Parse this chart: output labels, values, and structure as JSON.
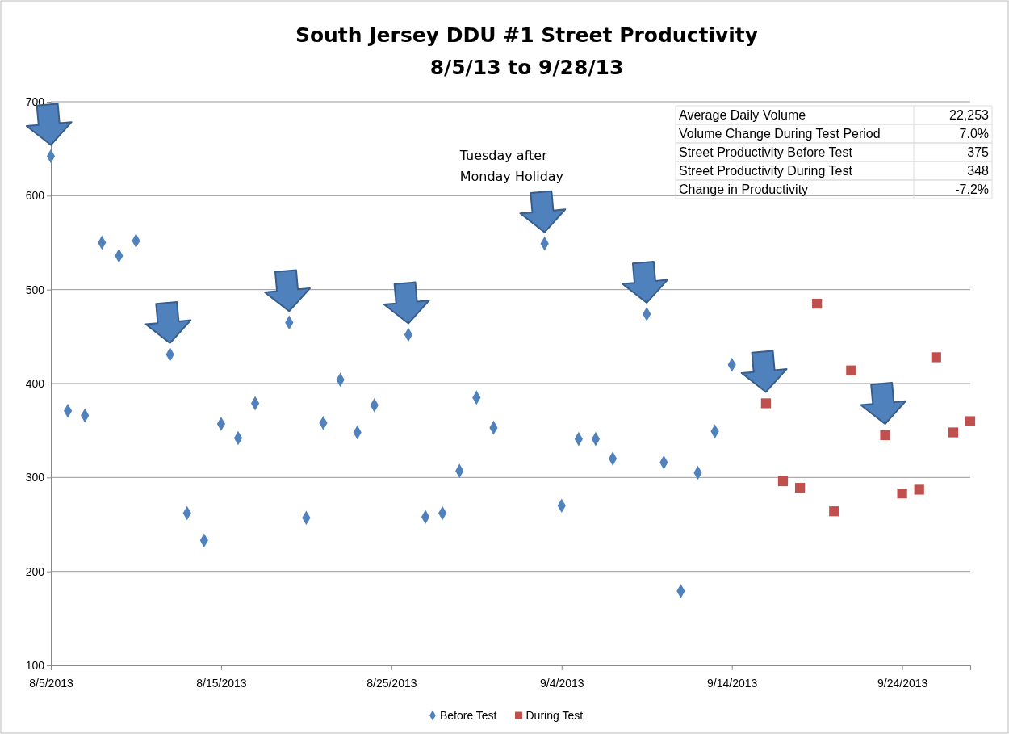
{
  "chart_data": {
    "type": "scatter",
    "title": "South Jersey DDU #1 Street Productivity",
    "subtitle": "8/5/13 to 9/28/13",
    "xlim": [
      "2013-08-05",
      "2013-09-28"
    ],
    "xticks": [
      {
        "value": "2013-08-05",
        "label": "8/5/2013"
      },
      {
        "value": "2013-08-15",
        "label": "8/15/2013"
      },
      {
        "value": "2013-08-25",
        "label": "8/25/2013"
      },
      {
        "value": "2013-09-04",
        "label": "9/4/2013"
      },
      {
        "value": "2013-09-14",
        "label": "9/14/2013"
      },
      {
        "value": "2013-09-24",
        "label": "9/24/2013"
      }
    ],
    "ylim": [
      100,
      700
    ],
    "yticks": [
      100,
      200,
      300,
      400,
      500,
      600,
      700
    ],
    "grid": "y",
    "legend": "bottom",
    "series": [
      {
        "name": "Before Test",
        "color": "#4f81bd",
        "marker": "diamond",
        "x": [
          "2013-08-05",
          "2013-08-06",
          "2013-08-07",
          "2013-08-08",
          "2013-08-09",
          "2013-08-10",
          "2013-08-12",
          "2013-08-13",
          "2013-08-14",
          "2013-08-15",
          "2013-08-16",
          "2013-08-17",
          "2013-08-19",
          "2013-08-20",
          "2013-08-21",
          "2013-08-22",
          "2013-08-23",
          "2013-08-24",
          "2013-08-26",
          "2013-08-27",
          "2013-08-28",
          "2013-08-29",
          "2013-08-30",
          "2013-08-31",
          "2013-09-03",
          "2013-09-04",
          "2013-09-05",
          "2013-09-06",
          "2013-09-07",
          "2013-09-09",
          "2013-09-10",
          "2013-09-11",
          "2013-09-12",
          "2013-09-13",
          "2013-09-14"
        ],
        "values": [
          642,
          371,
          366,
          550,
          536,
          552,
          431,
          262,
          233,
          357,
          342,
          379,
          465,
          257,
          358,
          404,
          348,
          377,
          452,
          258,
          262,
          307,
          385,
          353,
          549,
          270,
          341,
          341,
          320,
          474,
          316,
          179,
          305,
          349,
          420
        ]
      },
      {
        "name": "During Test",
        "color": "#c0504d",
        "marker": "square",
        "x": [
          "2013-09-16",
          "2013-09-17",
          "2013-09-18",
          "2013-09-19",
          "2013-09-20",
          "2013-09-21",
          "2013-09-23",
          "2013-09-24",
          "2013-09-25",
          "2013-09-26",
          "2013-09-27",
          "2013-09-28"
        ],
        "values": [
          379,
          296,
          289,
          485,
          264,
          414,
          345,
          283,
          287,
          428,
          348,
          360
        ]
      }
    ],
    "annotations": [
      "Tuesday after Monday Holiday",
      "Average Daily Volume",
      "22,253",
      "Volume Change During Test Period",
      "7.0%",
      "Street Productivity Before Test",
      "375",
      "Street Productivity During Test",
      "348",
      "Change in Productivity",
      "-7.2%"
    ]
  }
}
